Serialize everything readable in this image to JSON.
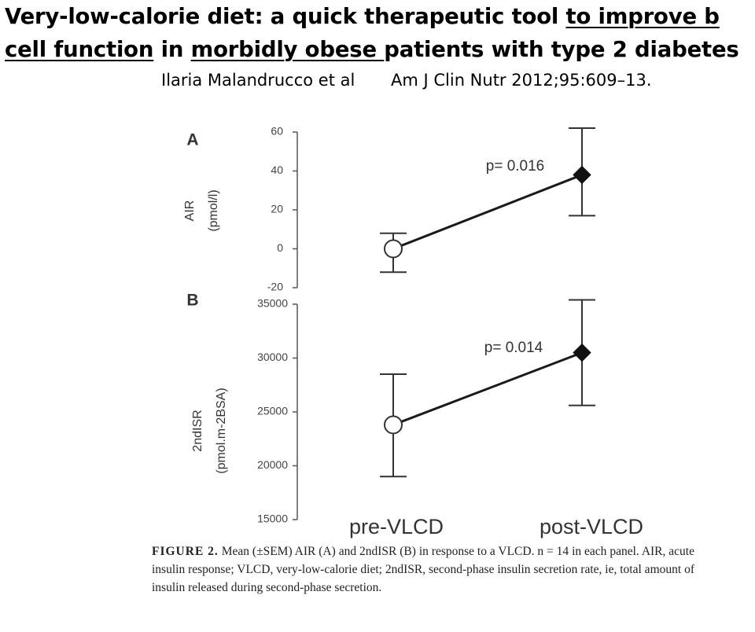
{
  "slide": {
    "title_part1": "Very-low-calorie diet: a quick therapeutic tool ",
    "title_part2": "to improve b cell function",
    "title_part3": " in ",
    "title_part4": "morbidly obese ",
    "title_part5": "patients with type 2 diabetes",
    "author": "Ilaria Malandrucco et al",
    "journal": "Am J Clin Nutr 2012;95:609–13."
  },
  "caption": {
    "label": "FIGURE 2.",
    "text": "Mean (±SEM) AIR (A) and 2ndISR (B) in response to a VLCD. n = 14 in each panel. AIR, acute insulin response; VLCD, very-low-calorie diet; 2ndISR, second-phase insulin secretion rate, ie, total amount of insulin released during second-phase secretion."
  },
  "chart_data": [
    {
      "type": "line",
      "panel_label": "A",
      "title": "",
      "xlabel": "",
      "ylabel": "AIR (pmol/l)",
      "categories": [
        "pre-VLCD",
        "post-VLCD"
      ],
      "ylim": [
        -20,
        60
      ],
      "yticks": [
        -20,
        0,
        20,
        40,
        60
      ],
      "series": [
        {
          "values": [
            0,
            38
          ],
          "error_low": [
            -12,
            17
          ],
          "error_high": [
            8,
            62
          ],
          "markers": [
            "open-circle",
            "filled-diamond"
          ]
        }
      ],
      "annotation": "p= 0.016",
      "grid": false
    },
    {
      "type": "line",
      "panel_label": "B",
      "title": "",
      "xlabel": "",
      "ylabel": "2ndISR (pmol.m-2BSA)",
      "ylabel_line1": "2ndISR",
      "ylabel_line2": "(pmol.m-2BSA)",
      "categories": [
        "pre-VLCD",
        "post-VLCD"
      ],
      "ylim": [
        15000,
        35000
      ],
      "yticks": [
        15000,
        20000,
        25000,
        30000,
        35000
      ],
      "series": [
        {
          "values": [
            23800,
            30500
          ],
          "error_low": [
            19000,
            25600
          ],
          "error_high": [
            28500,
            35400
          ],
          "markers": [
            "open-circle",
            "filled-diamond"
          ]
        }
      ],
      "annotation": "p= 0.014",
      "grid": false
    }
  ]
}
